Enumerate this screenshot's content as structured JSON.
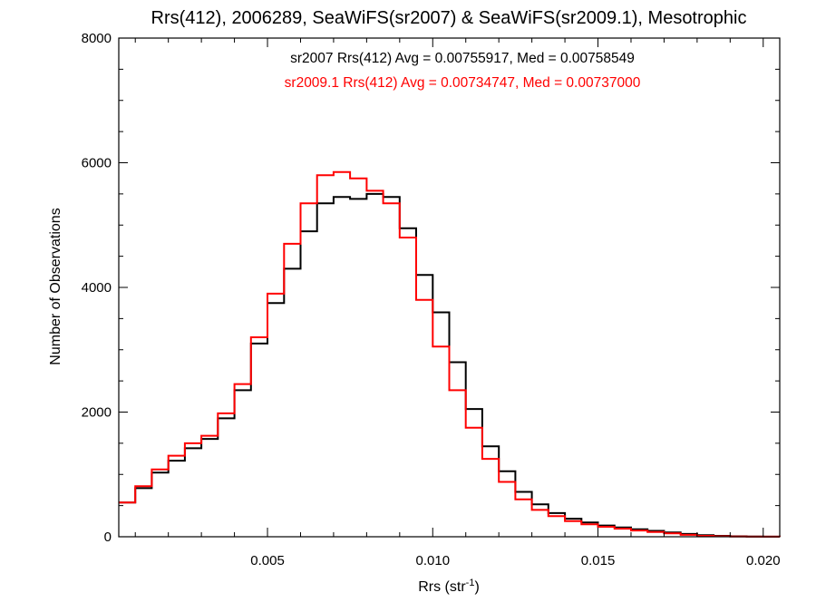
{
  "chart_data": {
    "type": "line",
    "style": "step",
    "title": "Rrs(412), 2006289, SeaWiFS(sr2007) & SeaWiFS(sr2009.1), Mesotrophic",
    "xlabel_main": "Rrs (str",
    "xlabel_sup": "-1",
    "xlabel_close": ")",
    "ylabel": "Number of Observations",
    "xlim": [
      0.0005,
      0.0205
    ],
    "ylim": [
      0,
      8000
    ],
    "x_ticks": [
      0.005,
      0.01,
      0.015,
      0.02
    ],
    "x_tick_labels": [
      "0.005",
      "0.010",
      "0.015",
      "0.020"
    ],
    "y_ticks": [
      0,
      2000,
      4000,
      6000,
      8000
    ],
    "y_tick_labels": [
      "0",
      "2000",
      "4000",
      "6000",
      "8000"
    ],
    "grid": false,
    "annotations": [
      {
        "text": "sr2007 Rrs(412) Avg = 0.00755917, Med = 0.00758549",
        "color": "#000000"
      },
      {
        "text": "sr2009.1 Rrs(412) Avg = 0.00734747, Med = 0.00737000",
        "color": "#ff0000"
      }
    ],
    "series": [
      {
        "color": "#000000",
        "x": [
          0.0005,
          0.001,
          0.0015,
          0.002,
          0.0025,
          0.003,
          0.0035,
          0.004,
          0.0045,
          0.005,
          0.0055,
          0.006,
          0.0065,
          0.007,
          0.0075,
          0.008,
          0.0085,
          0.009,
          0.0095,
          0.01,
          0.0105,
          0.011,
          0.0115,
          0.012,
          0.0125,
          0.013,
          0.0135,
          0.014,
          0.0145,
          0.015,
          0.0155,
          0.016,
          0.0165,
          0.017,
          0.0175,
          0.018,
          0.0185,
          0.019,
          0.0195,
          0.02,
          0.0205
        ],
        "y": [
          550,
          780,
          1030,
          1220,
          1420,
          1570,
          1900,
          2350,
          3100,
          3750,
          4300,
          4900,
          5350,
          5450,
          5420,
          5500,
          5450,
          4950,
          4200,
          3600,
          2800,
          2050,
          1450,
          1050,
          720,
          520,
          380,
          290,
          230,
          180,
          150,
          120,
          95,
          70,
          45,
          25,
          15,
          8,
          4,
          2,
          0
        ]
      },
      {
        "color": "#ff0000",
        "x": [
          0.0005,
          0.001,
          0.0015,
          0.002,
          0.0025,
          0.003,
          0.0035,
          0.004,
          0.0045,
          0.005,
          0.0055,
          0.006,
          0.0065,
          0.007,
          0.0075,
          0.008,
          0.0085,
          0.009,
          0.0095,
          0.01,
          0.0105,
          0.011,
          0.0115,
          0.012,
          0.0125,
          0.013,
          0.0135,
          0.014,
          0.0145,
          0.015,
          0.0155,
          0.016,
          0.0165,
          0.017,
          0.0175,
          0.018,
          0.0185,
          0.019,
          0.0195,
          0.02,
          0.0205
        ],
        "y": [
          550,
          810,
          1080,
          1300,
          1500,
          1620,
          1980,
          2450,
          3200,
          3900,
          4700,
          5350,
          5800,
          5850,
          5750,
          5550,
          5350,
          4800,
          3800,
          3050,
          2350,
          1750,
          1250,
          880,
          600,
          430,
          330,
          250,
          200,
          160,
          130,
          100,
          75,
          55,
          30,
          15,
          8,
          4,
          2,
          1,
          0
        ]
      }
    ]
  }
}
